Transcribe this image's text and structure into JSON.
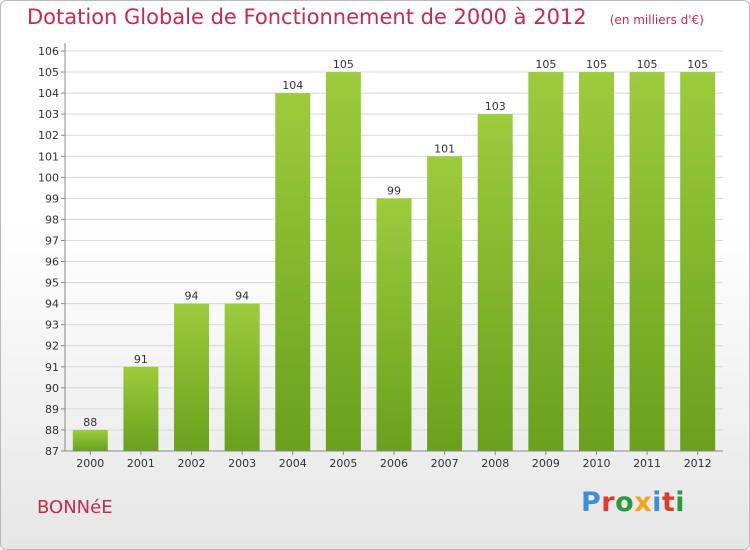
{
  "header": {
    "title": "Dotation Globale de Fonctionnement de 2000 à 2012",
    "unit": "(en milliers d'€)"
  },
  "footer": {
    "commune": "BONNéE",
    "logo": "Proxiti",
    "logo_colors": [
      "#3f8fd8",
      "#e23b2e",
      "#2a9a3a",
      "#f6a21a",
      "#3f8fd8",
      "#e23b2e",
      "#2a9a3a"
    ]
  },
  "colors": {
    "bar_light": "#9ccc3c",
    "bar_dark": "#6aa01c",
    "grid": "#d8d8d8",
    "title": "#c8294f"
  },
  "chart_data": {
    "type": "bar",
    "title": "Dotation Globale de Fonctionnement de 2000 à 2012",
    "subtitle": "(en milliers d'€)",
    "xlabel": "",
    "ylabel": "",
    "categories": [
      "2000",
      "2001",
      "2002",
      "2003",
      "2004",
      "2005",
      "2006",
      "2007",
      "2008",
      "2009",
      "2010",
      "2011",
      "2012"
    ],
    "values": [
      88,
      91,
      94,
      94,
      104,
      105,
      99,
      101,
      103,
      105,
      105,
      105,
      105
    ],
    "ylim": [
      87,
      106
    ],
    "yticks": [
      87,
      88,
      89,
      90,
      91,
      92,
      93,
      94,
      95,
      96,
      97,
      98,
      99,
      100,
      101,
      102,
      103,
      104,
      105,
      106
    ],
    "grid": true,
    "data_labels": true
  }
}
